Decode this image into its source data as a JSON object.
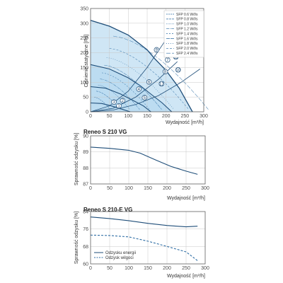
{
  "colors": {
    "navy": "#1f4e79",
    "mid": "#2f6ea5",
    "fill": "#cfe6f5",
    "fill2": "#a9d2ee",
    "grid": "#c8c8c8",
    "axis": "#555555"
  },
  "chart_data": [
    {
      "type": "line",
      "title": "",
      "xlabel": "Wydajność [m³/h]",
      "ylabel": "Ciśnienie statyczne [Pa]",
      "xlim": [
        0,
        300
      ],
      "ylim": [
        0,
        350
      ],
      "x_ticks": [
        "0",
        "50",
        "100",
        "150",
        "200",
        "250",
        "300"
      ],
      "y_ticks": [
        "0",
        "50",
        "100",
        "150",
        "200",
        "250",
        "300",
        "350"
      ],
      "grid": true,
      "legend_position": "top-right",
      "legend": [
        "SFP 0.6 W/l/s",
        "SFP 0.8 W/l/s",
        "SFP 1.0 W/l/s",
        "SFP 1.2 W/l/s",
        "SFP 1.4 W/l/s",
        "SFP 1.6 W/l/s",
        "SFP 1.8 W/l/s",
        "SFP 2.0 W/l/s",
        "SFP 2.4 W/l/s"
      ],
      "fan_curves": [
        {
          "x": [
            0,
            50,
            100,
            150,
            170,
            200,
            235,
            270
          ],
          "y": [
            310,
            290,
            260,
            210,
            180,
            140,
            80,
            0
          ]
        },
        {
          "x": [
            0,
            50,
            100,
            130,
            160,
            190,
            215
          ],
          "y": [
            160,
            145,
            115,
            90,
            60,
            30,
            0
          ]
        },
        {
          "x": [
            0,
            40,
            80,
            110,
            140,
            160
          ],
          "y": [
            85,
            80,
            60,
            40,
            20,
            0
          ]
        },
        {
          "x": [
            0,
            30,
            55,
            80,
            105
          ],
          "y": [
            30,
            28,
            20,
            10,
            0
          ]
        }
      ],
      "system_curves": [
        {
          "x": [
            0,
            60,
            120,
            180,
            240,
            290
          ],
          "y": [
            0,
            6,
            25,
            55,
            100,
            145
          ]
        },
        {
          "x": [
            0,
            60,
            120,
            180,
            230
          ],
          "y": [
            0,
            12,
            50,
            110,
            170
          ]
        },
        {
          "x": [
            0,
            50,
            100,
            150,
            200
          ],
          "y": [
            0,
            20,
            70,
            150,
            245
          ]
        }
      ],
      "operating_points": [
        {
          "label": "1",
          "x": 75,
          "y": 20
        },
        {
          "label": "2",
          "x": 85,
          "y": 38
        },
        {
          "label": "3",
          "x": 62,
          "y": 33
        },
        {
          "label": "4",
          "x": 128,
          "y": 77
        },
        {
          "label": "5",
          "x": 143,
          "y": 48
        },
        {
          "label": "6",
          "x": 155,
          "y": 101
        },
        {
          "label": "7",
          "x": 204,
          "y": 176
        },
        {
          "label": "8",
          "x": 198,
          "y": 136
        },
        {
          "label": "9",
          "x": 175,
          "y": 210
        },
        {
          "label": "10",
          "x": 232,
          "y": 142
        },
        {
          "label": "11",
          "x": 226,
          "y": 186
        },
        {
          "label": "12",
          "x": 188,
          "y": 95
        }
      ]
    },
    {
      "type": "line",
      "title": "Reneo S 210 VG",
      "xlabel": "Wydajność [m³/h]",
      "ylabel": "Sprawność odzysku [%]",
      "xlim": [
        0,
        300
      ],
      "ylim": [
        87,
        90
      ],
      "x_ticks": [
        "0",
        "50",
        "100",
        "150",
        "200",
        "250",
        "300"
      ],
      "y_ticks": [
        "87",
        "88",
        "89",
        "90"
      ],
      "grid": true,
      "series": [
        {
          "x": [
            0,
            50,
            100,
            130,
            170,
            210,
            250,
            280
          ],
          "y": [
            89.3,
            89.22,
            89.1,
            88.92,
            88.5,
            88.1,
            87.8,
            87.6
          ]
        }
      ]
    },
    {
      "type": "line",
      "title": "Reneo S 210-E VG",
      "xlabel": "Wydajność [m³/h]",
      "ylabel": "Sprawność odzysku [%]",
      "xlim": [
        0,
        300
      ],
      "ylim": [
        60,
        84
      ],
      "x_ticks": [
        "0",
        "50",
        "100",
        "150",
        "200",
        "250",
        "300"
      ],
      "y_ticks": [
        "60",
        "68",
        "76",
        "84"
      ],
      "grid": true,
      "legend_position": "bottom-left",
      "series": [
        {
          "name": "Odzysku energii",
          "style": "solid",
          "x": [
            0,
            50,
            100,
            150,
            200,
            250,
            280
          ],
          "y": [
            81.5,
            80.8,
            79.8,
            78.6,
            77.6,
            77.0,
            77.3
          ]
        },
        {
          "name": "Odzysk wilgoci",
          "style": "dashed",
          "x": [
            0,
            50,
            100,
            150,
            200,
            250,
            280
          ],
          "y": [
            73.2,
            73.0,
            72.4,
            70.4,
            68.0,
            65.5,
            61.5
          ]
        }
      ]
    }
  ]
}
